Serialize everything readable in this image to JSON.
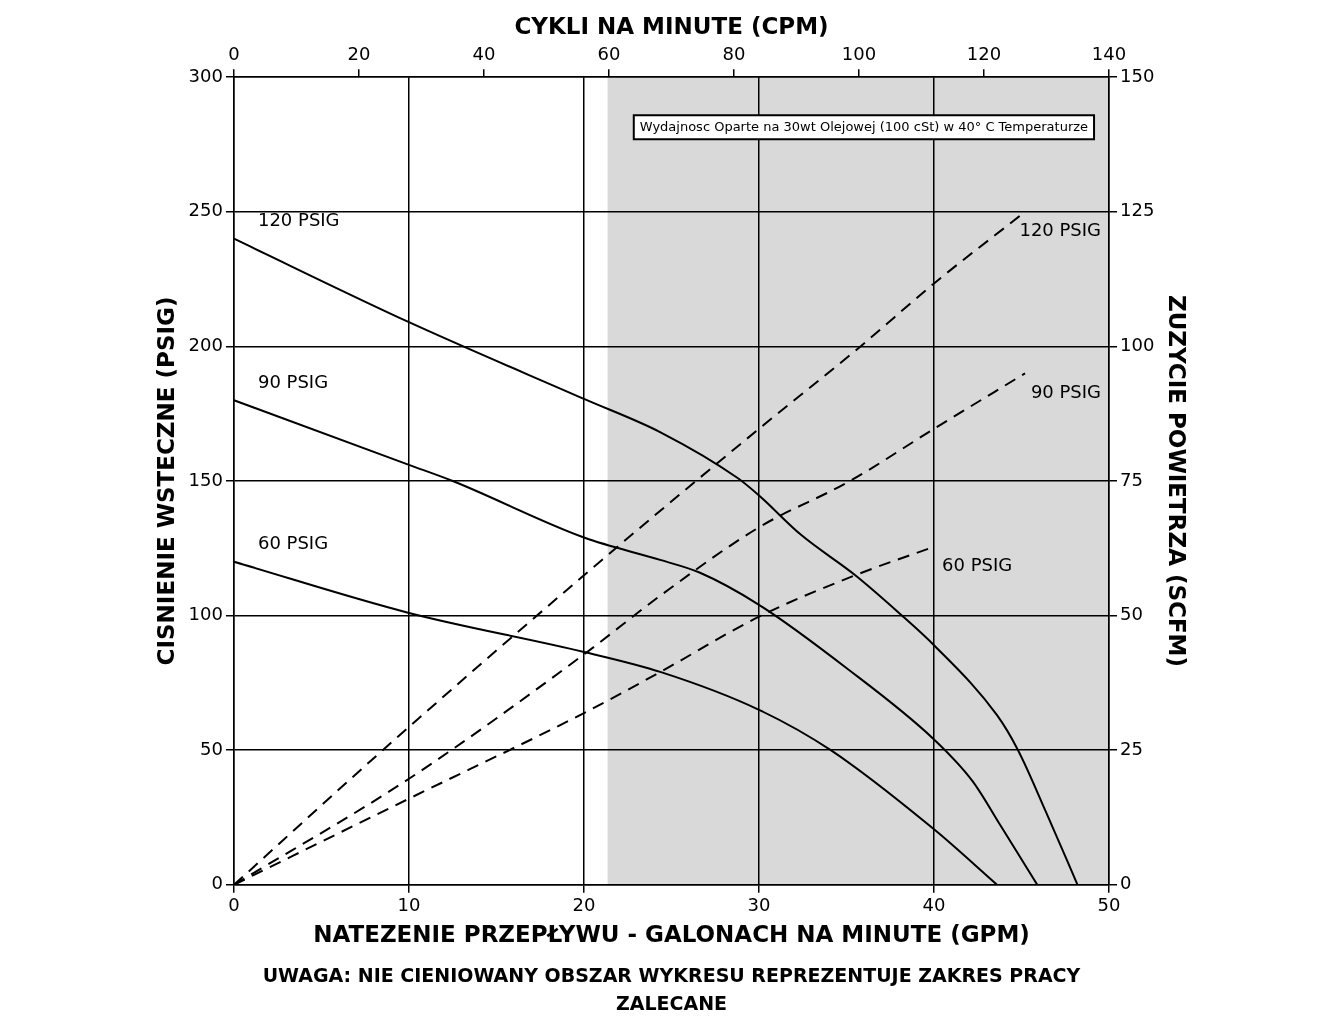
{
  "chart_data": {
    "type": "line",
    "xlabel": "NATEZENIE PRZEPŁYWU - GALONACH NA MINUTE (GPM)",
    "ylabel": "CISNIENIE WSTECZNE (PSIG)",
    "y2label": "ZUZYCIE POWIETRZA (SCFM)",
    "x2label": "CYKLI NA MINUTE (CPM)",
    "xlim": [
      0,
      50
    ],
    "xticks": [
      0,
      10,
      20,
      30,
      40,
      50
    ],
    "ylim": [
      0,
      300
    ],
    "yticks": [
      0,
      50,
      100,
      150,
      200,
      250,
      300
    ],
    "y2lim": [
      0,
      150
    ],
    "y2ticks": [
      0,
      25,
      50,
      75,
      100,
      125,
      150
    ],
    "x2lim": [
      0,
      140
    ],
    "x2ticks": [
      0,
      20,
      40,
      60,
      80,
      100,
      120,
      140
    ],
    "grid": true,
    "legend": false,
    "marker": "none",
    "bands": [
      {
        "axis": "x",
        "from": 21.35,
        "to": 50,
        "color": "#d9d9d9"
      }
    ],
    "annotations": [
      "Wydajnosc Oparte na 30wt Olejowej (100 cSt) w 40° C Temperaturze",
      "UWAGA: NIE CIENIOWANY OBSZAR WYKRESU REPREZENTUJE ZAKRES PRACY ZALECANE"
    ],
    "series": [
      {
        "name": "120 PSIG",
        "color": "#000000",
        "line_style": "solid",
        "x": [
          0,
          10,
          20,
          24.4,
          28.8,
          30,
          32.4,
          35.5,
          38,
          40,
          43.6,
          44.8,
          46.4,
          48.2
        ],
        "values": [
          240,
          209,
          180.5,
          168,
          151,
          144.6,
          130,
          115,
          101,
          89,
          63,
          50,
          27,
          0
        ]
      },
      {
        "name": "90 PSIG",
        "color": "#000000",
        "line_style": "solid",
        "x": [
          0,
          10,
          12.5,
          20,
          24.4,
          26.6,
          30,
          34.9,
          40,
          42.2,
          43.8,
          45.9
        ],
        "values": [
          180,
          156,
          150,
          129,
          120.6,
          116,
          104,
          81,
          54,
          38.5,
          22,
          0
        ]
      },
      {
        "name": "60 PSIG",
        "color": "#000000",
        "line_style": "solid",
        "x": [
          0,
          10,
          20,
          24.4,
          30,
          34.1,
          40,
          43.6
        ],
        "values": [
          120,
          101,
          86.5,
          79,
          65,
          50,
          20.6,
          0
        ]
      },
      {
        "name": "120 PSIG",
        "color": "#000000",
        "line_style": "dashed",
        "axis": "y2",
        "x": [
          0,
          8.5,
          20,
          30,
          35.8,
          40,
          45.2
        ],
        "values": [
          0,
          25,
          57.5,
          84.7,
          100,
          111.7,
          125
        ]
      },
      {
        "name": "90 PSIG",
        "color": "#000000",
        "line_style": "dashed",
        "axis": "y2",
        "x": [
          0,
          10,
          20,
          24.4,
          30,
          35.2,
          40,
          45.2
        ],
        "values": [
          0,
          19.7,
          42.8,
          53.8,
          66.4,
          75,
          84.7,
          95
        ]
      },
      {
        "name": "60 PSIG",
        "color": "#000000",
        "line_style": "dashed",
        "axis": "y2",
        "x": [
          0,
          10,
          20,
          24.4,
          30,
          35.5,
          40
        ],
        "values": [
          0,
          16,
          31.9,
          39.6,
          49.8,
          57.5,
          62.8
        ]
      }
    ]
  }
}
